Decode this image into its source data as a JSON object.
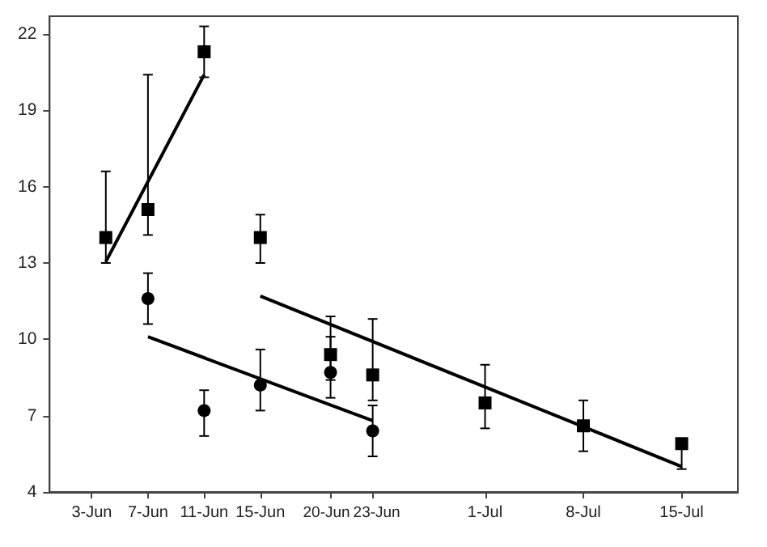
{
  "chart_data": {
    "type": "scatter",
    "xlim": [
      "--05-31",
      "--07-19"
    ],
    "ylim": [
      4,
      22.7
    ],
    "xticks": [
      {
        "value": "--06-03",
        "label": "3-Jun"
      },
      {
        "value": "--06-07",
        "label": "7-Jun"
      },
      {
        "value": "--06-11",
        "label": "11-Jun"
      },
      {
        "value": "--06-15",
        "label": "15-Jun"
      },
      {
        "value": "--06-20",
        "label": "20-Jun"
      },
      {
        "value": "--06-23",
        "label": "23-Jun"
      },
      {
        "value": "--07-01",
        "label": "1-Jul"
      },
      {
        "value": "--07-08",
        "label": "8-Jul"
      },
      {
        "value": "--07-15",
        "label": "15-Jul"
      }
    ],
    "yticks": [
      4,
      7,
      10,
      13,
      16,
      19,
      22
    ],
    "grid": false,
    "series": [
      {
        "marker": "square",
        "color": "#000000",
        "x": [
          "--06-04",
          "--06-07",
          "--06-11",
          "--06-15",
          "--06-20",
          "--06-23",
          "--07-01",
          "--07-08",
          "--07-15"
        ],
        "values": [
          14.0,
          15.1,
          21.3,
          14.0,
          9.4,
          8.6,
          7.5,
          6.6,
          5.9
        ],
        "errors": [
          [
            13.0,
            16.6
          ],
          [
            14.1,
            20.4
          ],
          [
            20.3,
            22.3
          ],
          [
            13.0,
            14.9
          ],
          [
            8.4,
            10.9
          ],
          [
            7.6,
            10.8
          ],
          [
            6.5,
            9.0
          ],
          [
            5.6,
            7.6
          ],
          [
            4.9,
            5.9
          ]
        ]
      },
      {
        "marker": "circle",
        "color": "#000000",
        "x": [
          "--06-07",
          "--06-11",
          "--06-15",
          "--06-20",
          "--06-23"
        ],
        "values": [
          11.6,
          7.2,
          8.2,
          8.7,
          6.4
        ],
        "errors": [
          [
            10.6,
            12.6
          ],
          [
            6.2,
            8.0
          ],
          [
            7.2,
            9.6
          ],
          [
            7.7,
            10.1
          ],
          [
            5.4,
            7.4
          ]
        ]
      },
      {
        "type": "line",
        "marker": "none",
        "line_style": "solid",
        "color": "#000000",
        "x": [
          "--06-04",
          "--06-11"
        ],
        "values": [
          13.05,
          20.4
        ]
      },
      {
        "type": "line",
        "marker": "none",
        "line_style": "solid",
        "color": "#000000",
        "x": [
          "--06-07",
          "--06-23"
        ],
        "values": [
          10.1,
          6.8
        ]
      },
      {
        "type": "line",
        "marker": "none",
        "line_style": "solid",
        "color": "#000000",
        "x": [
          "--06-15",
          "--07-15"
        ],
        "values": [
          11.7,
          5.0
        ]
      }
    ]
  }
}
